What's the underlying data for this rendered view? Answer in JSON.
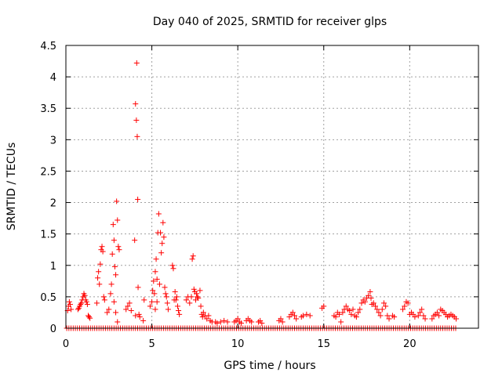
{
  "chart_data": {
    "type": "scatter",
    "title": "Day 040 of 2025, SRMTID for receiver glps",
    "xlabel": "GPS time / hours",
    "ylabel": "SRMTID / TECUs",
    "xlim": [
      0,
      24
    ],
    "ylim": [
      0,
      4.5
    ],
    "x_ticks": [
      0,
      5,
      10,
      15,
      20
    ],
    "x_tick_labels": [
      "0",
      "5",
      "10",
      "15",
      "20"
    ],
    "y_ticks": [
      0,
      0.5,
      1,
      1.5,
      2,
      2.5,
      3,
      3.5,
      4,
      4.5
    ],
    "y_tick_labels": [
      "0",
      "0.5",
      "1",
      "1.5",
      "2",
      "2.5",
      "3",
      "3.5",
      "4",
      "4.5"
    ],
    "grid": true,
    "marker": "plus",
    "color": "#ff0000",
    "baseline": {
      "x_start": 0.05,
      "x_end": 22.75,
      "step": 0.125,
      "y": 0
    },
    "series": [
      {
        "name": "SRMTID",
        "points": [
          [
            0.1,
            0.28
          ],
          [
            0.15,
            0.35
          ],
          [
            0.2,
            0.42
          ],
          [
            0.25,
            0.38
          ],
          [
            0.3,
            0.3
          ],
          [
            0.7,
            0.3
          ],
          [
            0.75,
            0.32
          ],
          [
            0.8,
            0.35
          ],
          [
            0.85,
            0.38
          ],
          [
            0.9,
            0.4
          ],
          [
            0.95,
            0.45
          ],
          [
            1.0,
            0.5
          ],
          [
            1.05,
            0.55
          ],
          [
            1.1,
            0.52
          ],
          [
            1.15,
            0.45
          ],
          [
            1.2,
            0.42
          ],
          [
            1.25,
            0.38
          ],
          [
            1.3,
            0.2
          ],
          [
            1.35,
            0.18
          ],
          [
            1.4,
            0.16
          ],
          [
            1.8,
            0.4
          ],
          [
            1.85,
            0.8
          ],
          [
            1.9,
            0.9
          ],
          [
            1.95,
            0.7
          ],
          [
            2.0,
            1.02
          ],
          [
            2.05,
            1.25
          ],
          [
            2.1,
            1.3
          ],
          [
            2.15,
            1.22
          ],
          [
            2.2,
            0.5
          ],
          [
            2.25,
            0.45
          ],
          [
            2.4,
            0.25
          ],
          [
            2.5,
            0.3
          ],
          [
            2.6,
            0.55
          ],
          [
            2.65,
            0.7
          ],
          [
            2.7,
            1.18
          ],
          [
            2.75,
            1.65
          ],
          [
            2.8,
            1.4
          ],
          [
            2.85,
            0.98
          ],
          [
            2.9,
            0.85
          ],
          [
            2.95,
            2.02
          ],
          [
            3.0,
            1.72
          ],
          [
            3.05,
            1.3
          ],
          [
            3.1,
            1.25
          ],
          [
            2.8,
            0.42
          ],
          [
            2.9,
            0.25
          ],
          [
            3.0,
            0.1
          ],
          [
            3.5,
            0.3
          ],
          [
            3.6,
            0.35
          ],
          [
            3.7,
            0.4
          ],
          [
            3.8,
            0.28
          ],
          [
            4.0,
            1.4
          ],
          [
            4.05,
            3.57
          ],
          [
            4.1,
            3.31
          ],
          [
            4.12,
            4.22
          ],
          [
            4.15,
            3.05
          ],
          [
            4.18,
            2.05
          ],
          [
            4.2,
            0.65
          ],
          [
            4.25,
            0.22
          ],
          [
            4.3,
            0.18
          ],
          [
            4.05,
            0.2
          ],
          [
            4.5,
            0.12
          ],
          [
            4.55,
            0.45
          ],
          [
            4.9,
            0.35
          ],
          [
            5.0,
            0.42
          ],
          [
            5.05,
            0.6
          ],
          [
            5.1,
            0.75
          ],
          [
            5.15,
            0.55
          ],
          [
            5.2,
            0.9
          ],
          [
            5.25,
            1.1
          ],
          [
            5.3,
            0.78
          ],
          [
            5.35,
            1.52
          ],
          [
            5.4,
            1.82
          ],
          [
            5.45,
            0.7
          ],
          [
            5.5,
            1.52
          ],
          [
            5.55,
            1.2
          ],
          [
            5.6,
            1.35
          ],
          [
            5.65,
            1.68
          ],
          [
            5.7,
            1.45
          ],
          [
            5.75,
            0.65
          ],
          [
            5.8,
            0.55
          ],
          [
            5.85,
            0.5
          ],
          [
            5.9,
            0.4
          ],
          [
            5.95,
            0.3
          ],
          [
            5.2,
            0.3
          ],
          [
            5.3,
            0.42
          ],
          [
            6.2,
            1.0
          ],
          [
            6.25,
            0.95
          ],
          [
            6.3,
            0.45
          ],
          [
            6.35,
            0.58
          ],
          [
            6.4,
            0.45
          ],
          [
            6.45,
            0.5
          ],
          [
            6.5,
            0.35
          ],
          [
            6.55,
            0.28
          ],
          [
            6.6,
            0.22
          ],
          [
            7.0,
            0.45
          ],
          [
            7.1,
            0.5
          ],
          [
            7.2,
            0.4
          ],
          [
            7.3,
            0.5
          ],
          [
            7.35,
            1.1
          ],
          [
            7.4,
            1.15
          ],
          [
            7.45,
            0.62
          ],
          [
            7.5,
            0.58
          ],
          [
            7.55,
            0.45
          ],
          [
            7.6,
            0.55
          ],
          [
            7.65,
            0.5
          ],
          [
            7.7,
            0.48
          ],
          [
            7.8,
            0.6
          ],
          [
            7.85,
            0.35
          ],
          [
            7.9,
            0.22
          ],
          [
            7.95,
            0.18
          ],
          [
            8.0,
            0.25
          ],
          [
            8.1,
            0.2
          ],
          [
            8.2,
            0.15
          ],
          [
            8.3,
            0.2
          ],
          [
            8.4,
            0.12
          ],
          [
            8.5,
            0.1
          ],
          [
            8.7,
            0.1
          ],
          [
            8.8,
            0.08
          ],
          [
            9.0,
            0.1
          ],
          [
            9.2,
            0.12
          ],
          [
            9.4,
            0.1
          ],
          [
            9.8,
            0.1
          ],
          [
            9.9,
            0.12
          ],
          [
            10.0,
            0.15
          ],
          [
            10.1,
            0.1
          ],
          [
            10.2,
            0.08
          ],
          [
            10.5,
            0.12
          ],
          [
            10.6,
            0.15
          ],
          [
            10.7,
            0.12
          ],
          [
            10.8,
            0.1
          ],
          [
            11.2,
            0.1
          ],
          [
            11.3,
            0.12
          ],
          [
            11.4,
            0.08
          ],
          [
            12.4,
            0.12
          ],
          [
            12.5,
            0.15
          ],
          [
            12.6,
            0.1
          ],
          [
            13.0,
            0.18
          ],
          [
            13.1,
            0.22
          ],
          [
            13.2,
            0.25
          ],
          [
            13.3,
            0.2
          ],
          [
            13.4,
            0.15
          ],
          [
            13.7,
            0.18
          ],
          [
            13.8,
            0.2
          ],
          [
            14.0,
            0.22
          ],
          [
            14.2,
            0.2
          ],
          [
            14.9,
            0.32
          ],
          [
            15.0,
            0.35
          ],
          [
            15.6,
            0.2
          ],
          [
            15.7,
            0.18
          ],
          [
            15.8,
            0.25
          ],
          [
            15.9,
            0.22
          ],
          [
            16.0,
            0.1
          ],
          [
            16.1,
            0.25
          ],
          [
            16.2,
            0.3
          ],
          [
            16.3,
            0.35
          ],
          [
            16.4,
            0.3
          ],
          [
            16.5,
            0.28
          ],
          [
            16.6,
            0.22
          ],
          [
            16.7,
            0.3
          ],
          [
            16.8,
            0.2
          ],
          [
            16.9,
            0.18
          ],
          [
            17.0,
            0.25
          ],
          [
            17.1,
            0.3
          ],
          [
            17.2,
            0.4
          ],
          [
            17.3,
            0.45
          ],
          [
            17.4,
            0.42
          ],
          [
            17.5,
            0.48
          ],
          [
            17.6,
            0.52
          ],
          [
            17.7,
            0.58
          ],
          [
            17.75,
            0.48
          ],
          [
            17.8,
            0.38
          ],
          [
            17.9,
            0.4
          ],
          [
            18.0,
            0.35
          ],
          [
            18.1,
            0.3
          ],
          [
            18.2,
            0.25
          ],
          [
            18.3,
            0.2
          ],
          [
            18.4,
            0.3
          ],
          [
            18.5,
            0.4
          ],
          [
            18.6,
            0.35
          ],
          [
            18.7,
            0.2
          ],
          [
            18.8,
            0.15
          ],
          [
            19.0,
            0.2
          ],
          [
            19.1,
            0.18
          ],
          [
            19.6,
            0.3
          ],
          [
            19.7,
            0.35
          ],
          [
            19.8,
            0.42
          ],
          [
            19.9,
            0.4
          ],
          [
            20.0,
            0.22
          ],
          [
            20.1,
            0.25
          ],
          [
            20.2,
            0.22
          ],
          [
            20.3,
            0.18
          ],
          [
            20.5,
            0.2
          ],
          [
            20.6,
            0.25
          ],
          [
            20.7,
            0.3
          ],
          [
            20.8,
            0.2
          ],
          [
            20.9,
            0.15
          ],
          [
            21.3,
            0.15
          ],
          [
            21.4,
            0.2
          ],
          [
            21.5,
            0.22
          ],
          [
            21.6,
            0.25
          ],
          [
            21.7,
            0.2
          ],
          [
            21.8,
            0.3
          ],
          [
            21.9,
            0.28
          ],
          [
            22.0,
            0.25
          ],
          [
            22.1,
            0.22
          ],
          [
            22.2,
            0.18
          ],
          [
            22.3,
            0.2
          ],
          [
            22.4,
            0.22
          ],
          [
            22.5,
            0.2
          ],
          [
            22.6,
            0.18
          ],
          [
            22.7,
            0.15
          ]
        ]
      }
    ]
  }
}
